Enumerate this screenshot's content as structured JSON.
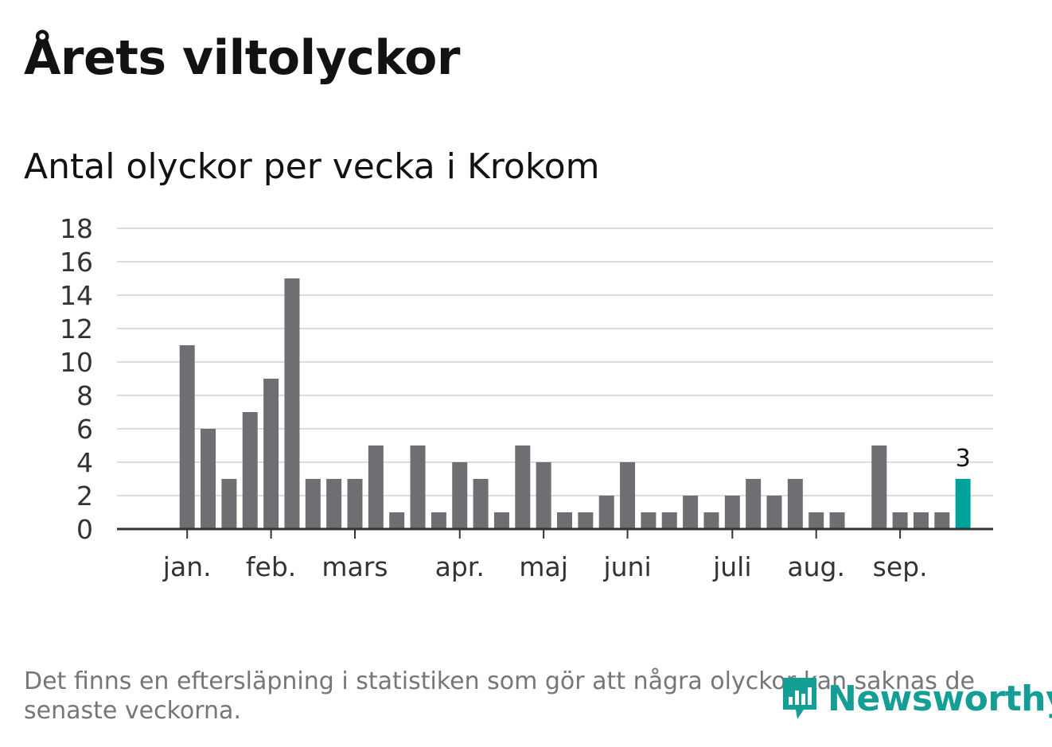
{
  "title": "Årets viltolyckor",
  "subtitle": "Antal olyckor per vecka i Krokom",
  "note": "Det finns en eftersläpning i statistiken som gör att några olyckor kan saknas de senaste veckorna.",
  "brand": {
    "name": "Newsworthy",
    "icon": "newsworthy-logo-icon",
    "color": "#149e96"
  },
  "colors": {
    "bar": "#6f6e73",
    "highlight": "#00a39a",
    "grid": "#dcdcdc",
    "axis": "#333333"
  },
  "chart_data": {
    "type": "bar",
    "title": "Antal olyckor per vecka i Krokom",
    "xlabel": "",
    "ylabel": "",
    "ylim": [
      0,
      18
    ],
    "yticks": [
      0,
      2,
      4,
      6,
      8,
      10,
      12,
      14,
      16,
      18
    ],
    "grid": true,
    "weeks": [
      1,
      2,
      3,
      4,
      5,
      6,
      7,
      8,
      9,
      10,
      11,
      12,
      13,
      14,
      15,
      16,
      17,
      18,
      19,
      20,
      21,
      22,
      23,
      24,
      25,
      26,
      27,
      28,
      29,
      30,
      31,
      32,
      33,
      34,
      35,
      36,
      37,
      38,
      39,
      40,
      41,
      42
    ],
    "values": [
      0,
      0,
      11,
      6,
      3,
      7,
      9,
      15,
      3,
      3,
      3,
      5,
      1,
      5,
      1,
      4,
      3,
      1,
      5,
      4,
      1,
      1,
      2,
      4,
      1,
      1,
      2,
      1,
      2,
      3,
      2,
      3,
      1,
      1,
      0,
      5,
      1,
      1,
      1,
      3,
      0,
      0
    ],
    "highlight_index": 39,
    "highlight_label": "3",
    "month_ticks": [
      {
        "label": "jan.",
        "week": 3
      },
      {
        "label": "feb.",
        "week": 7
      },
      {
        "label": "mars",
        "week": 11
      },
      {
        "label": "apr.",
        "week": 16
      },
      {
        "label": "maj",
        "week": 20
      },
      {
        "label": "juni",
        "week": 24
      },
      {
        "label": "juli",
        "week": 29
      },
      {
        "label": "aug.",
        "week": 33
      },
      {
        "label": "sep.",
        "week": 37
      }
    ]
  }
}
